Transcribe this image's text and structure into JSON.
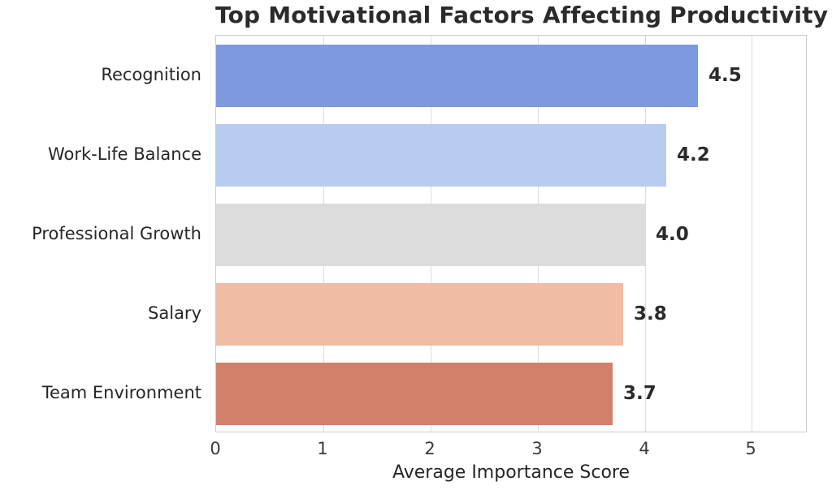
{
  "chart_data": {
    "type": "bar",
    "orientation": "horizontal",
    "title": "Top Motivational Factors Affecting Productivity",
    "xlabel": "Average Importance Score",
    "ylabel": "",
    "categories": [
      "Recognition",
      "Work-Life Balance",
      "Professional Growth",
      "Salary",
      "Team Environment"
    ],
    "values": [
      4.5,
      4.2,
      4.0,
      3.8,
      3.7
    ],
    "value_labels": [
      "4.5",
      "4.2",
      "4.0",
      "3.8",
      "3.7"
    ],
    "bar_colors": [
      "#7f99e0",
      "#b8cbf0",
      "#dcdcdc",
      "#f0bca6",
      "#d28069"
    ],
    "x_ticks": [
      "0",
      "1",
      "2",
      "3",
      "4",
      "5"
    ],
    "x_tick_values": [
      0,
      1,
      2,
      3,
      4,
      5
    ],
    "xlim": [
      0,
      5.52
    ],
    "grid": "vertical",
    "legend_position": "none",
    "background_color": "#ffffff",
    "grid_color": "#dcdcdc",
    "axis_border_color": "#cccccc",
    "title_color": "#2b2b2b",
    "text_color": "#262626"
  }
}
